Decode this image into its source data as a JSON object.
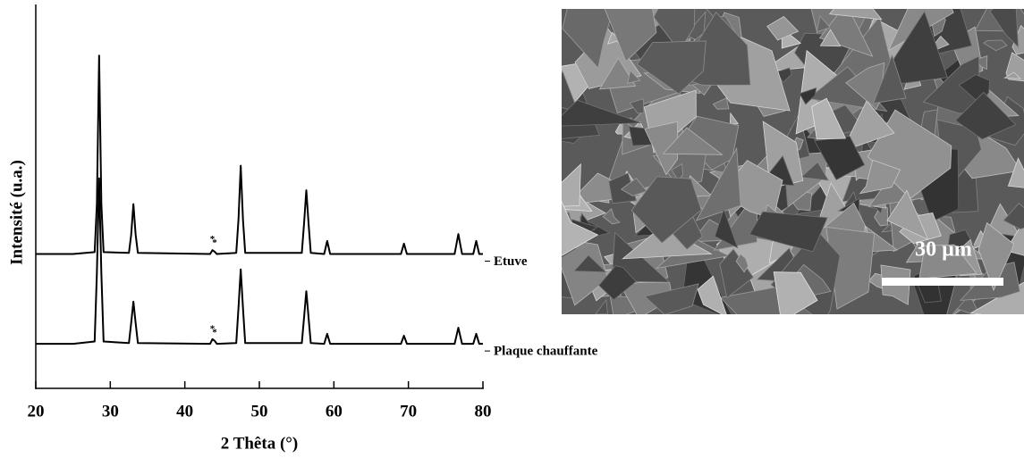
{
  "chart_data": {
    "type": "line",
    "xlabel": "2 Thêta (°)",
    "ylabel": "Intensité (u.a.)",
    "x": [
      20,
      25,
      27.9,
      28.2,
      28.5,
      28.8,
      29.1,
      32.5,
      32.8,
      33.1,
      33.4,
      33.7,
      43.4,
      43.7,
      44.0,
      44.3,
      46.9,
      47.2,
      47.5,
      47.8,
      48.1,
      55.7,
      56.0,
      56.3,
      56.6,
      56.9,
      58.7,
      59.1,
      59.5,
      69.0,
      69.4,
      69.8,
      76.2,
      76.7,
      77.2,
      78.7,
      79.1,
      79.5,
      80
    ],
    "series": [
      {
        "name": "Etuve",
        "color": "#000000",
        "values": [
          35,
          35,
          35.5,
          48,
          86.7,
          48,
          35.5,
          35.3,
          40,
          48,
          40,
          35.3,
          35,
          36,
          35.6,
          35,
          35.3,
          44,
          58,
          44,
          35.3,
          35.3,
          43,
          51.6,
          43,
          35.3,
          35,
          38.4,
          35,
          35,
          37.7,
          35,
          35,
          40.2,
          35,
          35,
          38.4,
          35,
          35
        ]
      },
      {
        "name": "Plaque chauffante",
        "color": "#000000",
        "values": [
          11.6,
          11.6,
          12.2,
          30,
          54.7,
          30,
          12.2,
          11.8,
          17,
          22.6,
          17,
          11.8,
          11.6,
          12.8,
          12.4,
          11.6,
          11.8,
          21,
          31,
          21,
          11.8,
          11.8,
          18.5,
          25.3,
          18.5,
          11.8,
          11.6,
          14.2,
          11.6,
          11.6,
          13.7,
          11.6,
          11.6,
          15.8,
          11.6,
          11.6,
          14.2,
          11.6,
          11.6
        ]
      }
    ],
    "annotations": [
      {
        "text": "*",
        "x": 43.7,
        "series": 0
      },
      {
        "text": "*",
        "x": 44.0,
        "series": 0
      },
      {
        "text": "*",
        "x": 43.7,
        "series": 1
      },
      {
        "text": "*",
        "x": 44.0,
        "series": 1
      }
    ],
    "xlim": [
      20,
      80
    ],
    "ylim": [
      0,
      100
    ],
    "xticks": [
      20,
      30,
      40,
      50,
      60,
      70,
      80
    ]
  },
  "image": {
    "scale_bar": "30 µm"
  }
}
